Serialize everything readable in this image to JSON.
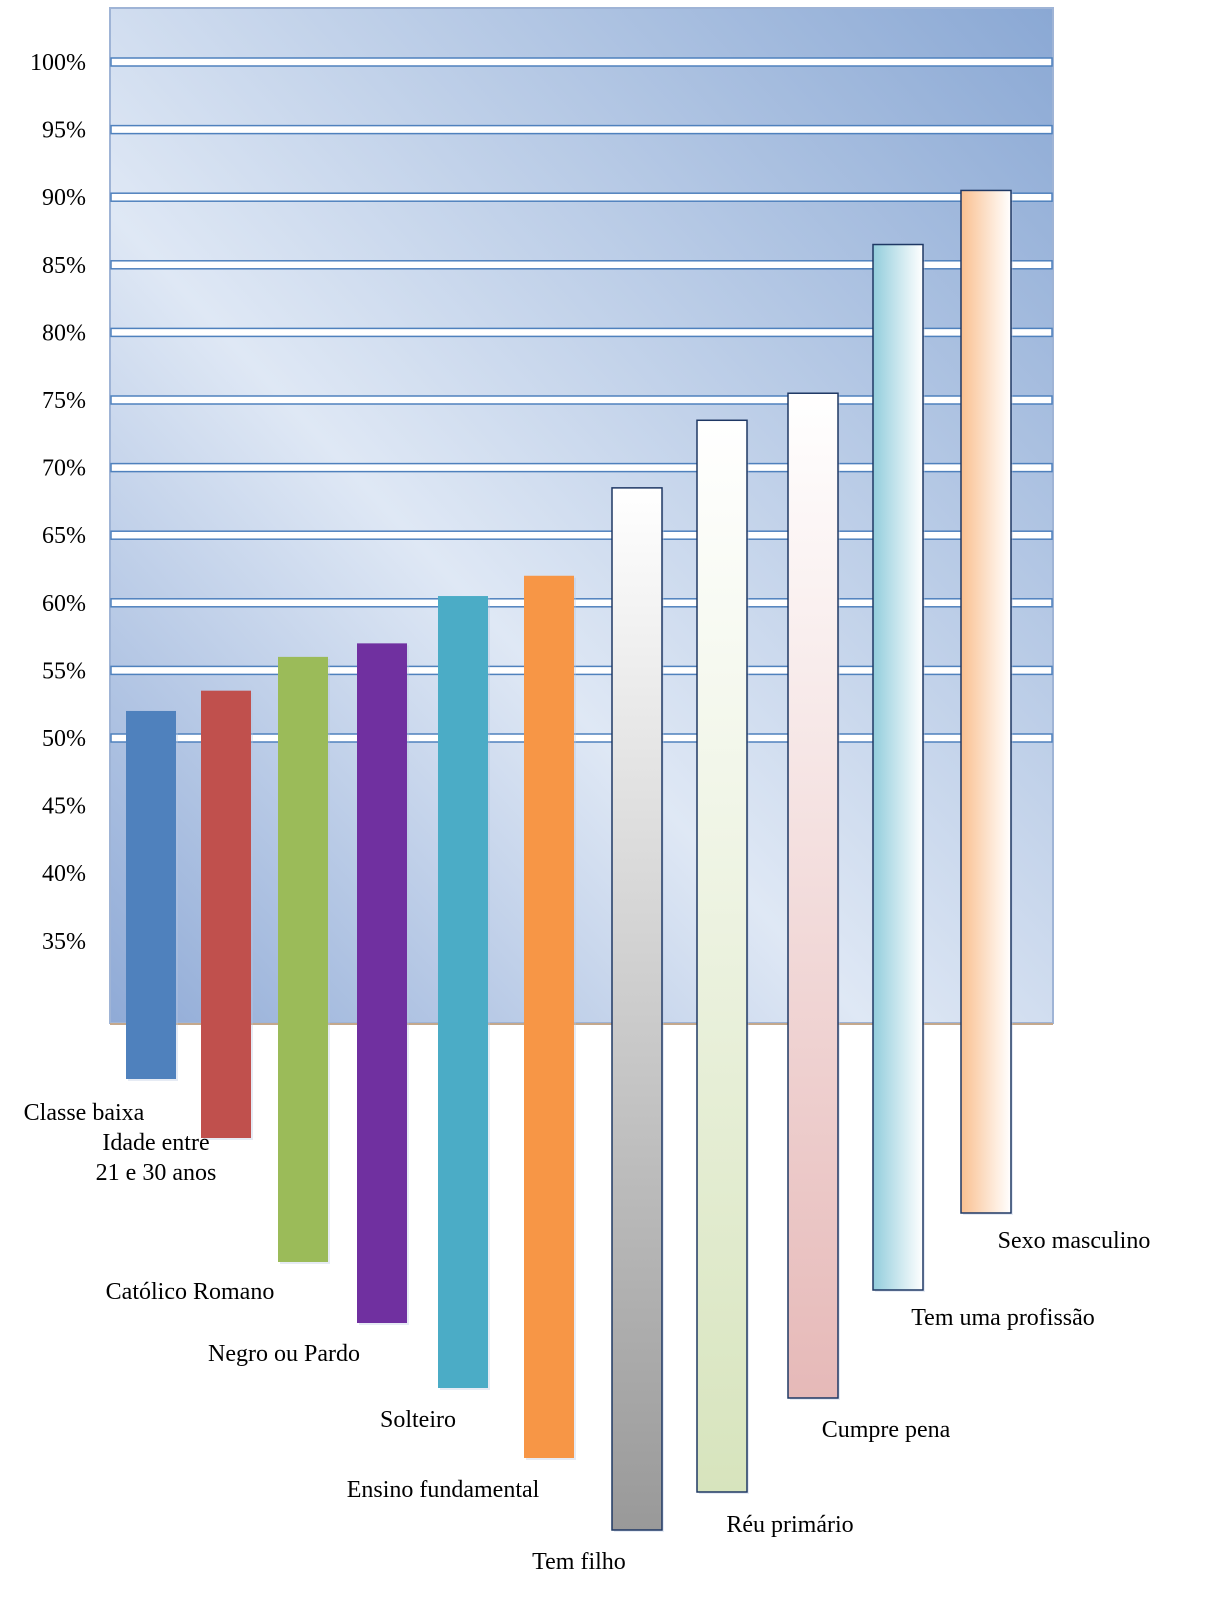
{
  "chart_data": {
    "type": "bar",
    "title": "",
    "xlabel": "",
    "ylabel": "",
    "ylim": [
      30,
      100
    ],
    "y_ticks": [
      "35%",
      "40%",
      "45%",
      "50%",
      "55%",
      "60%",
      "65%",
      "70%",
      "75%",
      "80%",
      "85%",
      "90%",
      "95%",
      "100%"
    ],
    "grid": true,
    "legend": "none",
    "categories": [
      {
        "lines": [
          "Classe baixa"
        ]
      },
      {
        "lines": [
          "Idade entre",
          "21 e 30 anos"
        ]
      },
      {
        "lines": [
          "Católico Romano"
        ]
      },
      {
        "lines": [
          "Negro ou Pardo"
        ]
      },
      {
        "lines": [
          "Solteiro"
        ]
      },
      {
        "lines": [
          "Ensino fundamental"
        ]
      },
      {
        "lines": [
          "Tem filho"
        ]
      },
      {
        "lines": [
          "Réu primário"
        ]
      },
      {
        "lines": [
          "Cumpre pena"
        ]
      },
      {
        "lines": [
          "Tem uma profissão"
        ]
      },
      {
        "lines": [
          "Sexo masculino"
        ]
      }
    ],
    "values": [
      52,
      53.5,
      56,
      57,
      60.5,
      62,
      68.5,
      73.5,
      75.5,
      86.5,
      90.5
    ],
    "colors": [
      "#4f81bd",
      "#c0504d",
      "#9bbb59",
      "#7030a0",
      "#4bacc6",
      "#f79646",
      "gradient-gray",
      "gradient-green",
      "gradient-pink",
      "gradient-cyan",
      "gradient-orange"
    ]
  }
}
